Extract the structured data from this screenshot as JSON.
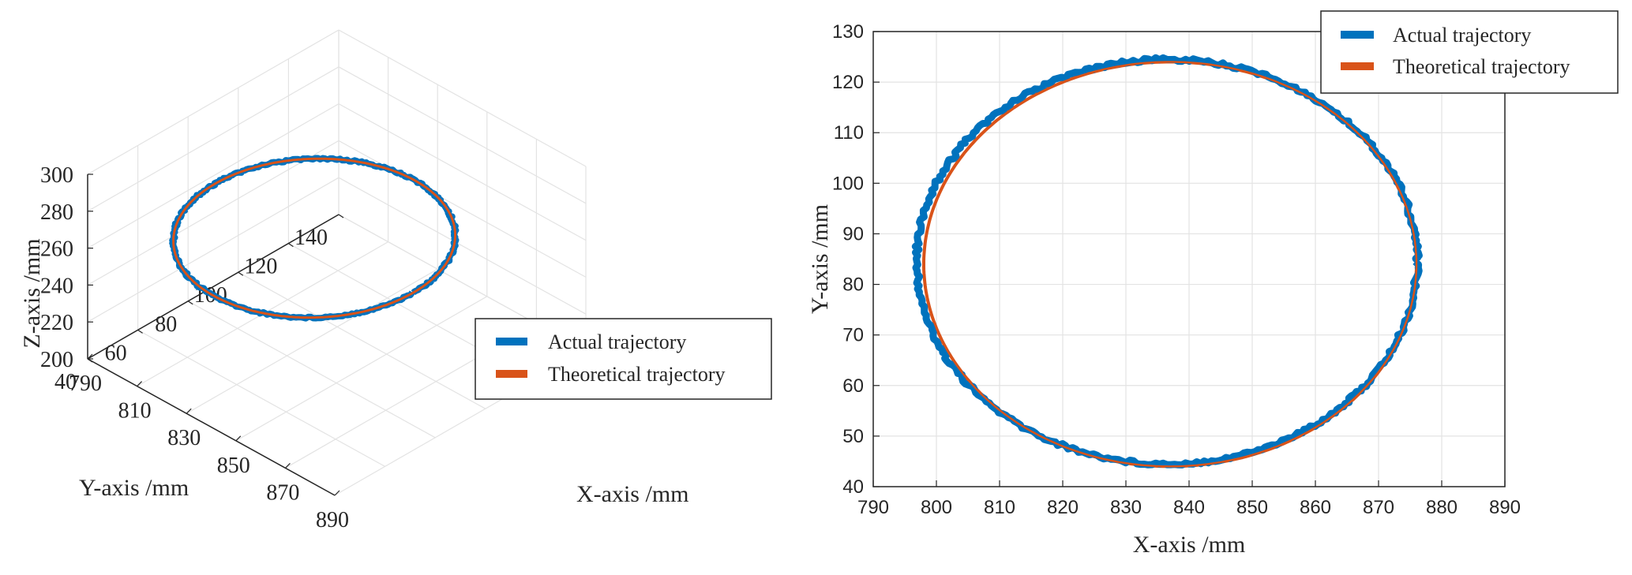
{
  "colors": {
    "actual": "#0072BD",
    "theoretical": "#D95319",
    "grid": "#e3e3e3",
    "axis": "#262626"
  },
  "chart_data": [
    {
      "type": "line3d",
      "xlabel": "X-axis /mm",
      "ylabel": "Y-axis /mm",
      "zlabel": "Z-axis /mm",
      "xlim": [
        790,
        890
      ],
      "ylim": [
        40,
        140
      ],
      "zlim": [
        200,
        300
      ],
      "xticks": [
        790,
        810,
        830,
        850,
        870,
        890
      ],
      "yticks": [
        40,
        60,
        80,
        100,
        120,
        140
      ],
      "zticks": [
        200,
        220,
        240,
        260,
        280,
        300
      ],
      "xtick_labels": [
        "790",
        "810",
        "830",
        "850",
        "870",
        "890"
      ],
      "ytick_labels": [
        "40",
        "60",
        "80",
        "100",
        "120",
        "140"
      ],
      "ztick_labels": [
        "200",
        "220",
        "240",
        "260",
        "280",
        "300"
      ],
      "grid": true,
      "legend_position": "lower-right",
      "series": [
        {
          "name": "Actual trajectory",
          "shape": "ellipse",
          "center": [
            836.5,
            84.5,
            265
          ],
          "radius_x": 40,
          "radius_y": 40,
          "z": 265
        },
        {
          "name": "Theoretical trajectory",
          "shape": "ellipse",
          "center": [
            836.5,
            84.5,
            265
          ],
          "radius_x": 40,
          "radius_y": 40,
          "z": 265
        }
      ]
    },
    {
      "type": "line",
      "xlabel": "X-axis /mm",
      "ylabel": "Y-axis /mm",
      "xlim": [
        790,
        890
      ],
      "ylim": [
        40,
        130
      ],
      "xticks": [
        790,
        800,
        810,
        820,
        830,
        840,
        850,
        860,
        870,
        880,
        890
      ],
      "yticks": [
        40,
        50,
        60,
        70,
        80,
        90,
        100,
        110,
        120,
        130
      ],
      "xtick_labels": [
        "790",
        "800",
        "810",
        "820",
        "830",
        "840",
        "850",
        "860",
        "870",
        "880",
        "890"
      ],
      "ytick_labels": [
        "40",
        "50",
        "60",
        "70",
        "80",
        "90",
        "100",
        "110",
        "120",
        "130"
      ],
      "grid": true,
      "legend_position": "top-right",
      "series": [
        {
          "name": "Actual trajectory",
          "shape": "ellipse",
          "center": [
            836.5,
            84.5
          ],
          "radius_x": 39.6,
          "radius_y": 40
        },
        {
          "name": "Theoretical trajectory",
          "shape": "ellipse",
          "center": [
            837,
            84
          ],
          "radius_x": 39,
          "radius_y": 40
        }
      ]
    }
  ]
}
